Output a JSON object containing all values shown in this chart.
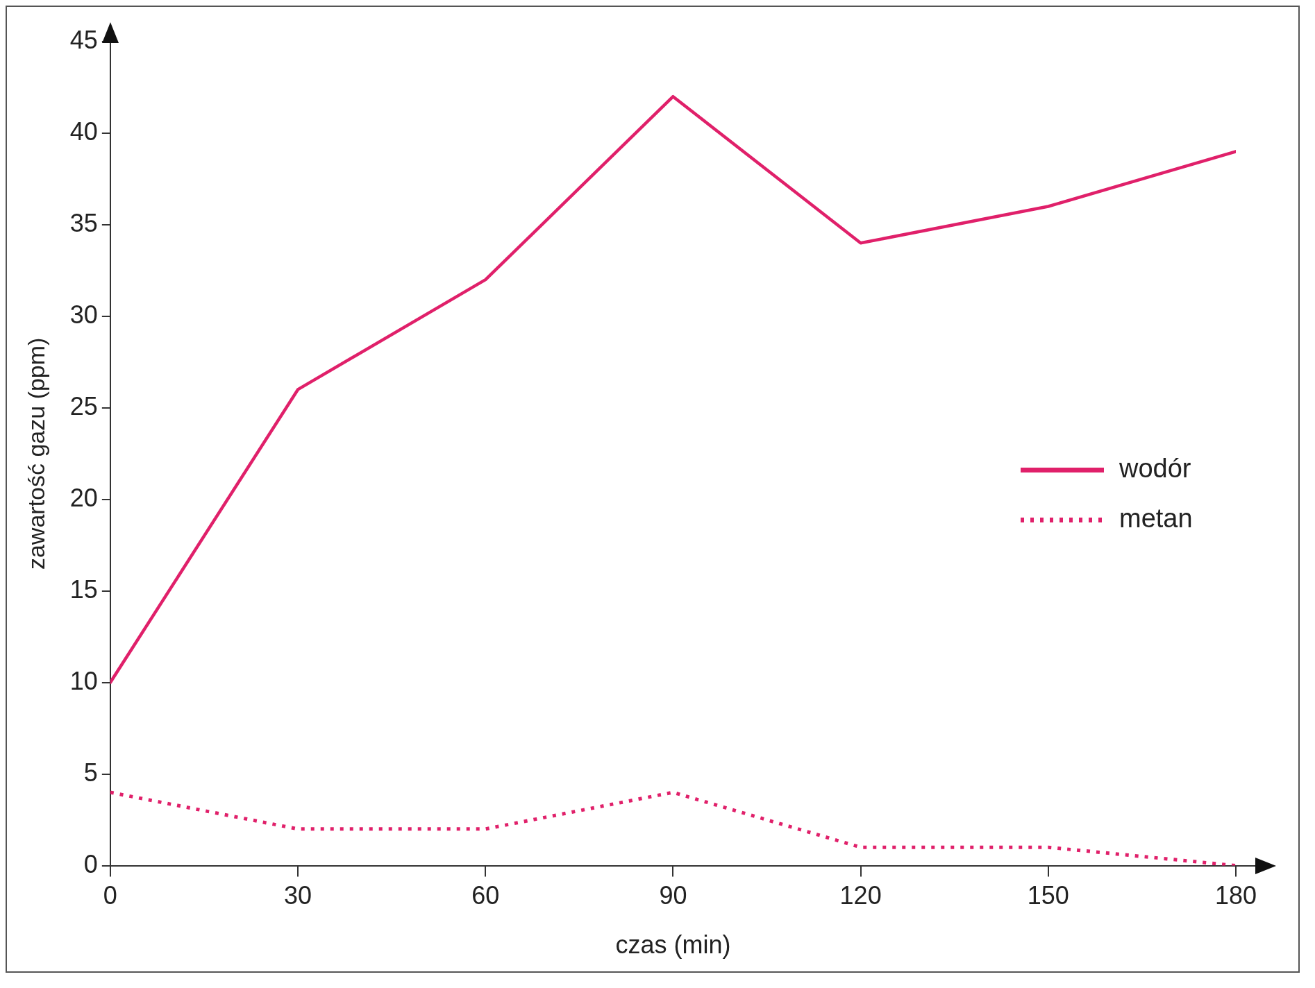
{
  "chart_data": {
    "type": "line",
    "xlabel": "czas (min)",
    "ylabel": "zawartość gazu (ppm)",
    "x": [
      0,
      30,
      60,
      90,
      120,
      150,
      180
    ],
    "series": [
      {
        "name": "wodór",
        "color": "#e0206a",
        "values": [
          10,
          26,
          32,
          42,
          34,
          36,
          39
        ],
        "line_style": "solid"
      },
      {
        "name": "metan",
        "color": "#e0206a",
        "values": [
          4,
          2,
          2,
          4,
          1,
          1,
          0
        ],
        "line_style": "dotted"
      }
    ],
    "xlim": [
      0,
      180
    ],
    "xticks": [
      0,
      30,
      60,
      90,
      120,
      150,
      180
    ],
    "ylim": [
      0,
      45
    ],
    "yticks": [
      0,
      5,
      10,
      15,
      20,
      25,
      30,
      35,
      40,
      45
    ],
    "grid": false,
    "legend": "right",
    "marker": "none"
  }
}
